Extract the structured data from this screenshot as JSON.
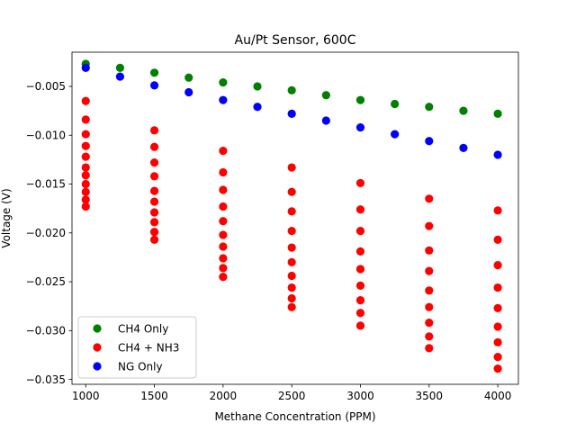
{
  "chart_data": {
    "type": "scatter",
    "title": "Au/Pt Sensor, 600C",
    "xlabel": "Methane Concentration (PPM)",
    "ylabel": "Voltage (V)",
    "xlim": [
      900,
      4150
    ],
    "ylim": [
      -0.0355,
      -0.0015
    ],
    "xticks": [
      1000,
      1500,
      2000,
      2500,
      3000,
      3500,
      4000
    ],
    "xtick_labels": [
      "1000",
      "1500",
      "2000",
      "2500",
      "3000",
      "3500",
      "4000"
    ],
    "yticks": [
      -0.005,
      -0.01,
      -0.015,
      -0.02,
      -0.025,
      -0.03,
      -0.035
    ],
    "ytick_labels": [
      "−0.005",
      "−0.010",
      "−0.015",
      "−0.020",
      "−0.025",
      "−0.030",
      "−0.035"
    ],
    "grid": false,
    "legend_position": "lower-left",
    "series": [
      {
        "name": "CH4 Only",
        "color": "#008000",
        "points": [
          [
            1000,
            -0.0027
          ],
          [
            1250,
            -0.0031
          ],
          [
            1500,
            -0.0036
          ],
          [
            1750,
            -0.0041
          ],
          [
            2000,
            -0.0046
          ],
          [
            2250,
            -0.005
          ],
          [
            2500,
            -0.0054
          ],
          [
            2750,
            -0.0059
          ],
          [
            3000,
            -0.0064
          ],
          [
            3250,
            -0.0068
          ],
          [
            3500,
            -0.0071
          ],
          [
            3750,
            -0.0075
          ],
          [
            4000,
            -0.0078
          ]
        ]
      },
      {
        "name": "CH4 + NH3",
        "color": "#ff0000",
        "points": [
          [
            1000,
            -0.0065
          ],
          [
            1000,
            -0.0084
          ],
          [
            1000,
            -0.0099
          ],
          [
            1000,
            -0.0111
          ],
          [
            1000,
            -0.0122
          ],
          [
            1000,
            -0.0133
          ],
          [
            1000,
            -0.0141
          ],
          [
            1000,
            -0.015
          ],
          [
            1000,
            -0.0158
          ],
          [
            1000,
            -0.0166
          ],
          [
            1000,
            -0.0173
          ],
          [
            1500,
            -0.0095
          ],
          [
            1500,
            -0.0112
          ],
          [
            1500,
            -0.0128
          ],
          [
            1500,
            -0.0142
          ],
          [
            1500,
            -0.0157
          ],
          [
            1500,
            -0.0168
          ],
          [
            1500,
            -0.0179
          ],
          [
            1500,
            -0.0189
          ],
          [
            1500,
            -0.0199
          ],
          [
            1500,
            -0.0207
          ],
          [
            2000,
            -0.0116
          ],
          [
            2000,
            -0.0138
          ],
          [
            2000,
            -0.0156
          ],
          [
            2000,
            -0.0173
          ],
          [
            2000,
            -0.0188
          ],
          [
            2000,
            -0.0202
          ],
          [
            2000,
            -0.0214
          ],
          [
            2000,
            -0.0226
          ],
          [
            2000,
            -0.0236
          ],
          [
            2000,
            -0.0245
          ],
          [
            2500,
            -0.0133
          ],
          [
            2500,
            -0.0158
          ],
          [
            2500,
            -0.0178
          ],
          [
            2500,
            -0.0198
          ],
          [
            2500,
            -0.0215
          ],
          [
            2500,
            -0.023
          ],
          [
            2500,
            -0.0244
          ],
          [
            2500,
            -0.0256
          ],
          [
            2500,
            -0.0267
          ],
          [
            2500,
            -0.0276
          ],
          [
            3000,
            -0.0149
          ],
          [
            3000,
            -0.0176
          ],
          [
            3000,
            -0.0198
          ],
          [
            3000,
            -0.0219
          ],
          [
            3000,
            -0.0237
          ],
          [
            3000,
            -0.0254
          ],
          [
            3000,
            -0.0269
          ],
          [
            3000,
            -0.0282
          ],
          [
            3000,
            -0.0295
          ],
          [
            3500,
            -0.0165
          ],
          [
            3500,
            -0.0193
          ],
          [
            3500,
            -0.0218
          ],
          [
            3500,
            -0.0239
          ],
          [
            3500,
            -0.0259
          ],
          [
            3500,
            -0.0276
          ],
          [
            3500,
            -0.0292
          ],
          [
            3500,
            -0.0306
          ],
          [
            3500,
            -0.0318
          ],
          [
            4000,
            -0.0177
          ],
          [
            4000,
            -0.0207
          ],
          [
            4000,
            -0.0233
          ],
          [
            4000,
            -0.0256
          ],
          [
            4000,
            -0.0277
          ],
          [
            4000,
            -0.0296
          ],
          [
            4000,
            -0.0312
          ],
          [
            4000,
            -0.0327
          ],
          [
            4000,
            -0.0339
          ]
        ]
      },
      {
        "name": "NG Only",
        "color": "#0000ff",
        "points": [
          [
            1000,
            -0.0031
          ],
          [
            1250,
            -0.004
          ],
          [
            1500,
            -0.0049
          ],
          [
            1750,
            -0.0056
          ],
          [
            2000,
            -0.0064
          ],
          [
            2250,
            -0.0071
          ],
          [
            2500,
            -0.0078
          ],
          [
            2750,
            -0.0085
          ],
          [
            3000,
            -0.0092
          ],
          [
            3250,
            -0.0099
          ],
          [
            3500,
            -0.0106
          ],
          [
            3750,
            -0.0113
          ],
          [
            4000,
            -0.012
          ]
        ]
      }
    ]
  }
}
